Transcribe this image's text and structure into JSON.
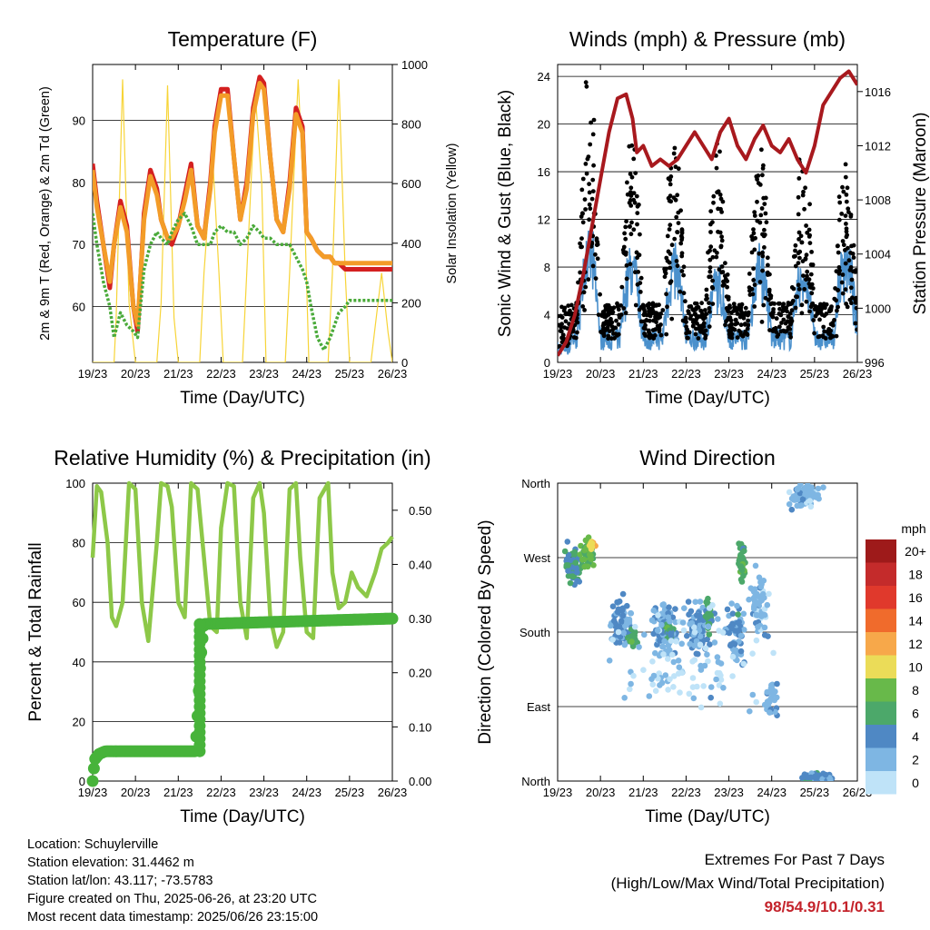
{
  "x_ticks": [
    "19/23",
    "20/23",
    "21/23",
    "22/23",
    "23/23",
    "24/23",
    "25/23",
    "26/23"
  ],
  "chart_data": [
    {
      "type": "line",
      "title": "Temperature (F)",
      "xlabel": "Time (Day/UTC)",
      "ylabel": "2m & 9m T (Red, Orange) & 2m Td (Green)",
      "ylabel_right": "Solar Insolation (Yellow)",
      "ylim": [
        51,
        99
      ],
      "yticks": [
        60,
        70,
        80,
        90
      ],
      "ylim_right": [
        0,
        1000
      ],
      "yticks_right": [
        0,
        200,
        400,
        600,
        800,
        1000
      ],
      "x_day": [
        0,
        0.1,
        0.25,
        0.4,
        0.5,
        0.65,
        0.8,
        0.95,
        1.05,
        1.2,
        1.35,
        1.5,
        1.6,
        1.75,
        1.85,
        2.0,
        2.15,
        2.3,
        2.45,
        2.6,
        2.75,
        2.85,
        3.0,
        3.15,
        3.3,
        3.45,
        3.6,
        3.75,
        3.9,
        4.0,
        4.15,
        4.3,
        4.45,
        4.6,
        4.75,
        4.9,
        5.0,
        5.1,
        5.25,
        5.4,
        5.55,
        5.65,
        5.75,
        5.9,
        6.0,
        6.15,
        6.3,
        6.45,
        6.6,
        6.75,
        6.9,
        7.0
      ],
      "series": [
        {
          "color": "#d42020",
          "values": [
            83,
            77,
            70,
            63,
            70,
            77,
            73,
            60,
            56,
            75,
            82,
            79,
            74,
            71,
            70,
            73,
            78,
            83,
            73,
            71,
            80,
            89,
            95,
            95,
            84,
            74,
            80,
            92,
            97,
            96,
            84,
            74,
            72,
            80,
            92,
            89,
            72,
            71,
            69,
            68,
            68,
            67,
            67,
            66,
            66,
            66,
            66,
            66,
            66,
            66,
            66,
            66
          ]
        },
        {
          "color": "#f39c28",
          "values": [
            82,
            76,
            70,
            64,
            70,
            76,
            72,
            60,
            57,
            74,
            81,
            78,
            74,
            71,
            71,
            73,
            77,
            82,
            73,
            71,
            79,
            88,
            94,
            94,
            84,
            74,
            79,
            91,
            96,
            95,
            84,
            74,
            72,
            79,
            91,
            88,
            72,
            71,
            69,
            68,
            68,
            67,
            67,
            67,
            67,
            67,
            67,
            67,
            67,
            67,
            67,
            67
          ]
        },
        {
          "color": "#4aaa3a",
          "values": [
            75,
            70,
            64,
            60,
            55,
            59,
            57,
            56,
            55,
            66,
            70,
            72,
            71,
            70,
            72,
            74,
            75,
            73,
            70,
            70,
            70,
            72,
            73,
            72,
            72,
            70,
            71,
            73,
            72,
            71,
            71,
            70,
            70,
            70,
            68,
            66,
            64,
            60,
            55,
            53,
            55,
            57,
            59,
            60,
            61,
            61,
            61,
            61,
            61,
            61,
            61,
            61
          ]
        }
      ],
      "solar": {
        "color": "#f7d437",
        "x_day": [
          0,
          0.5,
          0.55,
          0.7,
          0.85,
          1.0,
          1.5,
          1.6,
          1.75,
          1.9,
          2.0,
          2.5,
          2.6,
          2.8,
          2.95,
          3.05,
          3.5,
          3.6,
          3.8,
          3.95,
          4.05,
          4.5,
          4.6,
          4.8,
          4.95,
          5.05,
          5.5,
          5.6,
          5.75,
          5.9,
          6.0,
          6.5,
          6.6,
          6.75,
          6.9,
          7.0
        ],
        "values": [
          0,
          0,
          150,
          950,
          200,
          0,
          0,
          200,
          930,
          150,
          0,
          0,
          300,
          700,
          300,
          0,
          0,
          300,
          900,
          600,
          0,
          0,
          300,
          950,
          500,
          0,
          0,
          300,
          950,
          300,
          0,
          0,
          120,
          300,
          100,
          0
        ]
      }
    },
    {
      "type": "line",
      "title": "Winds (mph) & Pressure (mb)",
      "xlabel": "Time (Day/UTC)",
      "ylabel": "Sonic Wind & Gust (Blue, Black)",
      "ylabel_right": "Station Pressure (Maroon)",
      "ylim": [
        0,
        25
      ],
      "yticks": [
        0,
        4,
        8,
        12,
        16,
        20,
        24
      ],
      "ylim_right": [
        996,
        1018
      ],
      "yticks_right": [
        996,
        1000,
        1004,
        1008,
        1012,
        1016
      ],
      "pressure": {
        "color": "#a8191e",
        "x_day": [
          0,
          0.2,
          0.4,
          0.6,
          0.8,
          1.0,
          1.2,
          1.4,
          1.6,
          1.75,
          1.85,
          2.0,
          2.2,
          2.4,
          2.6,
          2.8,
          3.0,
          3.2,
          3.4,
          3.6,
          3.8,
          4.0,
          4.2,
          4.4,
          4.6,
          4.8,
          5.0,
          5.2,
          5.4,
          5.6,
          5.8,
          6.0,
          6.2,
          6.4,
          6.6,
          6.8,
          7.0
        ],
        "values": [
          996.5,
          997.5,
          999.5,
          1002.5,
          1006,
          1009.5,
          1013,
          1015.5,
          1015.8,
          1014,
          1011.5,
          1012,
          1010.5,
          1011,
          1010.5,
          1011,
          1012,
          1013,
          1012,
          1011,
          1013,
          1014,
          1012,
          1011,
          1012.5,
          1013.5,
          1012,
          1011.5,
          1012.5,
          1011,
          1010,
          1012,
          1015,
          1016,
          1017,
          1017.5,
          1016.5
        ]
      },
      "daily_gust_max": [
        23,
        17,
        18,
        16,
        17,
        16,
        16
      ],
      "daily_wind_max": [
        10,
        8,
        8,
        6,
        8,
        7,
        9
      ]
    },
    {
      "type": "line",
      "title": "Relative Humidity (%) & Precipitation (in)",
      "xlabel": "Time (Day/UTC)",
      "ylabel": "Percent & Total Rainfall",
      "ylim": [
        0,
        100
      ],
      "yticks": [
        0,
        20,
        40,
        60,
        80,
        100
      ],
      "ylim_right": [
        0,
        0.55
      ],
      "yticks_right": [
        "0.00",
        "0.10",
        "0.20",
        "0.30",
        "0.40",
        "0.50"
      ],
      "rh": {
        "color": "#8dc848",
        "x_day": [
          0,
          0.1,
          0.2,
          0.35,
          0.45,
          0.55,
          0.7,
          0.85,
          1.0,
          1.15,
          1.3,
          1.5,
          1.6,
          1.75,
          1.85,
          2.0,
          2.15,
          2.3,
          2.45,
          2.6,
          2.75,
          2.9,
          3.0,
          3.15,
          3.3,
          3.45,
          3.6,
          3.75,
          3.9,
          4.0,
          4.15,
          4.3,
          4.45,
          4.6,
          4.75,
          4.85,
          5.0,
          5.15,
          5.3,
          5.5,
          5.6,
          5.75,
          5.9,
          6.05,
          6.2,
          6.4,
          6.6,
          6.75,
          6.9,
          7.0
        ],
        "values": [
          75,
          99,
          97,
          80,
          55,
          52,
          60,
          100,
          98,
          60,
          47,
          80,
          100,
          99,
          92,
          60,
          55,
          100,
          98,
          75,
          52,
          50,
          85,
          100,
          99,
          60,
          48,
          95,
          100,
          90,
          55,
          45,
          50,
          98,
          100,
          75,
          50,
          48,
          95,
          100,
          70,
          58,
          60,
          70,
          65,
          62,
          70,
          78,
          80,
          82
        ]
      },
      "precip": {
        "color": "#47b33a",
        "x_day": [
          0,
          0.05,
          0.15,
          0.3,
          1.5,
          2.4,
          2.45,
          2.5,
          2.55,
          2.6,
          7.0
        ],
        "values": [
          0,
          0.04,
          0.05,
          0.055,
          0.055,
          0.055,
          0.12,
          0.2,
          0.25,
          0.29,
          0.3
        ]
      }
    },
    {
      "type": "scatter",
      "title": "Wind Direction",
      "xlabel": "Time (Day/UTC)",
      "ylabel": "Direction (Colored By Speed)",
      "yticks": [
        "North",
        "East",
        "South",
        "West",
        "North"
      ],
      "colorbar": {
        "unit": "mph",
        "labels": [
          "20+",
          "18",
          "16",
          "14",
          "12",
          "10",
          "8",
          "6",
          "4",
          "2",
          "0"
        ],
        "colors": [
          "#9e1a1a",
          "#c42b2b",
          "#e0392c",
          "#f06b2c",
          "#f7a84a",
          "#ebdc58",
          "#68b94a",
          "#4ca86a",
          "#4f88c4",
          "#7eb6e3",
          "#bfe3f8"
        ]
      }
    }
  ],
  "info": {
    "location": "Location: Schuylerville",
    "elevation": "Station elevation: 31.4462 m",
    "latlon": "Station lat/lon: 43.117; -73.5783",
    "created": "Figure created on Thu, 2025-06-26, at 23:20 UTC",
    "recent": "Most recent data timestamp: 2025/06/26 23:15:00"
  },
  "extremes": {
    "title": "Extremes For Past 7 Days",
    "subtitle": "(High/Low/Max Wind/Total Precipitation)",
    "values": "98/54.9/10.1/0.31"
  }
}
